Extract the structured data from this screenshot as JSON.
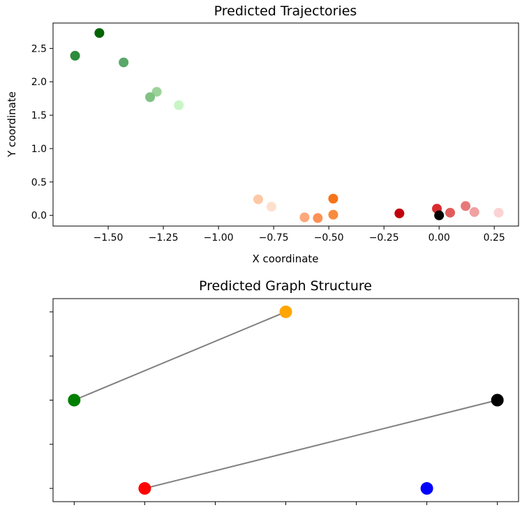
{
  "chart_data": [
    {
      "type": "scatter",
      "title": "Predicted Trajectories",
      "xlabel": "X coordinate",
      "ylabel": "Y coordinate",
      "xlim": [
        -1.75,
        0.36
      ],
      "ylim": [
        -0.16,
        2.88
      ],
      "xticks": [
        -1.5,
        -1.25,
        -1.0,
        -0.75,
        -0.5,
        -0.25,
        0.0,
        0.25
      ],
      "xtick_labels": [
        "−1.50",
        "−1.25",
        "−1.00",
        "−0.75",
        "−0.50",
        "−0.25",
        "0.00",
        "0.25"
      ],
      "yticks": [
        0.0,
        0.5,
        1.0,
        1.5,
        2.0,
        2.5
      ],
      "ytick_labels": [
        "0.0",
        "0.5",
        "1.0",
        "1.5",
        "2.0",
        "2.5"
      ],
      "grid": false,
      "points": [
        {
          "x": -1.54,
          "y": 2.73,
          "color": "#006400"
        },
        {
          "x": -1.65,
          "y": 2.39,
          "color": "#2e8b3a"
        },
        {
          "x": -1.43,
          "y": 2.29,
          "color": "#5aa869"
        },
        {
          "x": -1.28,
          "y": 1.85,
          "color": "#9cd39a"
        },
        {
          "x": -1.31,
          "y": 1.77,
          "color": "#7fc282"
        },
        {
          "x": -1.18,
          "y": 1.65,
          "color": "#c8f5c6"
        },
        {
          "x": -0.82,
          "y": 0.24,
          "color": "#fdc8a6"
        },
        {
          "x": -0.76,
          "y": 0.13,
          "color": "#fde0cc"
        },
        {
          "x": -0.61,
          "y": -0.03,
          "color": "#fca87a"
        },
        {
          "x": -0.55,
          "y": -0.04,
          "color": "#fc9155"
        },
        {
          "x": -0.48,
          "y": 0.25,
          "color": "#f5741a"
        },
        {
          "x": -0.48,
          "y": 0.01,
          "color": "#f88c3e"
        },
        {
          "x": -0.18,
          "y": 0.03,
          "color": "#c0000c"
        },
        {
          "x": -0.01,
          "y": 0.1,
          "color": "#d92b2f"
        },
        {
          "x": 0.0,
          "y": 0.0,
          "color": "#000000"
        },
        {
          "x": 0.05,
          "y": 0.04,
          "color": "#e05c5c"
        },
        {
          "x": 0.12,
          "y": 0.14,
          "color": "#e87878"
        },
        {
          "x": 0.16,
          "y": 0.05,
          "color": "#f0a0a0"
        },
        {
          "x": 0.27,
          "y": 0.04,
          "color": "#fcd2d2"
        }
      ]
    },
    {
      "type": "scatter",
      "title": "Predicted Graph Structure",
      "xlim": [
        -1.3,
        5.3
      ],
      "ylim": [
        -0.15,
        2.15
      ],
      "xticks": [
        -1,
        0,
        1,
        2,
        3,
        4,
        5
      ],
      "yticks": [
        0,
        0.5,
        1,
        1.5,
        2
      ],
      "grid": false,
      "nodes": [
        {
          "id": "orange",
          "x": 2,
          "y": 2,
          "color": "#ffa500"
        },
        {
          "id": "green",
          "x": -1,
          "y": 1,
          "color": "#008000"
        },
        {
          "id": "black",
          "x": 5,
          "y": 1,
          "color": "#000000"
        },
        {
          "id": "red",
          "x": 0,
          "y": 0,
          "color": "#ff0000"
        },
        {
          "id": "blue",
          "x": 4,
          "y": 0,
          "color": "#0000ff"
        }
      ],
      "edges": [
        {
          "from": "green",
          "to": "orange"
        },
        {
          "from": "red",
          "to": "black"
        }
      ],
      "edge_color": "#808080"
    }
  ]
}
